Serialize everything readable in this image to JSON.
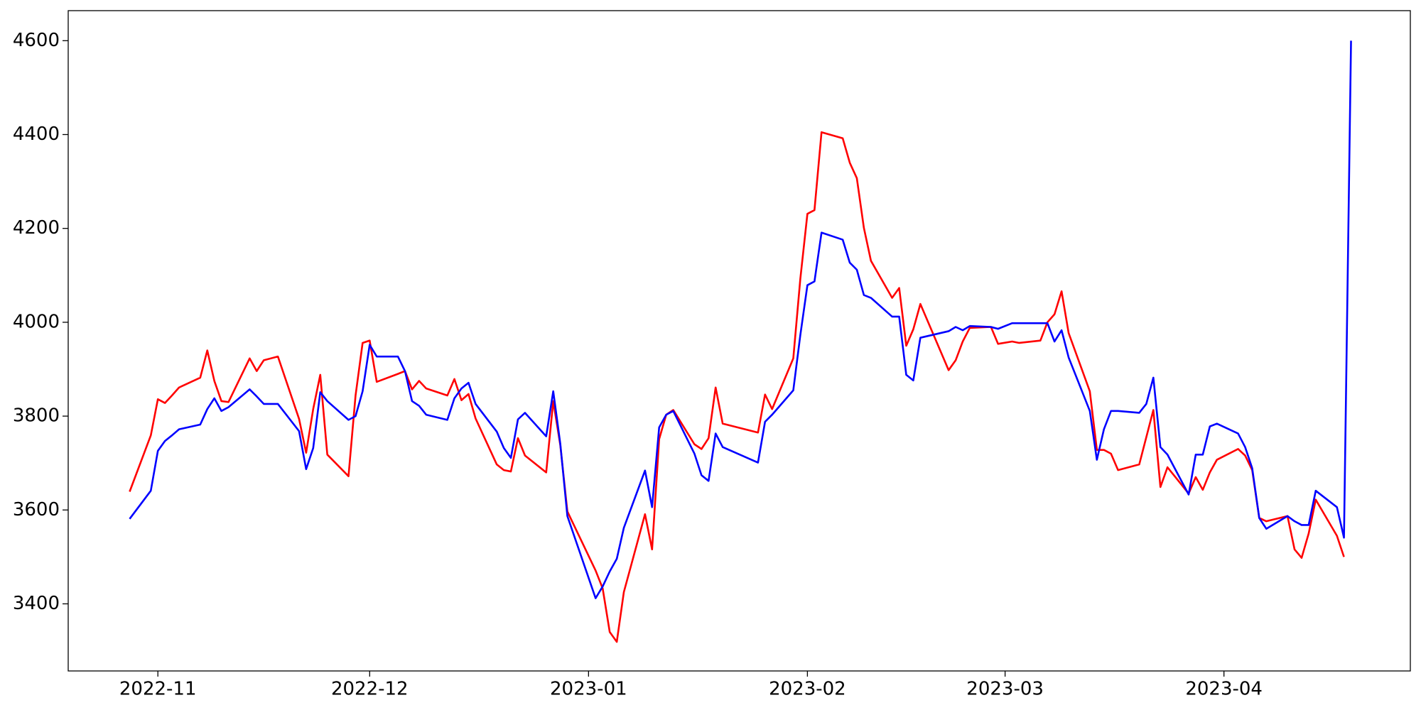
{
  "chart_data": {
    "type": "line",
    "x": [
      -4,
      -1,
      0,
      1,
      2,
      3,
      6,
      7,
      8,
      9,
      10,
      13,
      14,
      15,
      17,
      20,
      21,
      22,
      23,
      24,
      27,
      28,
      29,
      30,
      31,
      34,
      35,
      36,
      37,
      38,
      41,
      42,
      43,
      44,
      45,
      48,
      49,
      50,
      51,
      52,
      55,
      56,
      57,
      58,
      62,
      63,
      64,
      65,
      66,
      69,
      70,
      71,
      72,
      73,
      76,
      77,
      78,
      79,
      80,
      85,
      86,
      87,
      90,
      91,
      92,
      93,
      94,
      97,
      98,
      99,
      100,
      101,
      104,
      105,
      106,
      107,
      108,
      112,
      113,
      114,
      115,
      118,
      119,
      121,
      122,
      125,
      126,
      127,
      128,
      129,
      132,
      133,
      134,
      135,
      136,
      139,
      140,
      141,
      142,
      143,
      146,
      147,
      148,
      149,
      150,
      153,
      154,
      155,
      156,
      157,
      160,
      161,
      162,
      163,
      164,
      167,
      168,
      169
    ],
    "series": [
      {
        "color": "#ff0000",
        "values": [
          3639,
          3759,
          3836,
          3828,
          3844,
          3861,
          3882,
          3940,
          3875,
          3832,
          3830,
          3923,
          3896,
          3919,
          3927,
          3794,
          3722,
          3815,
          3888,
          3718,
          3672,
          3844,
          3956,
          3961,
          3873,
          3890,
          3896,
          3857,
          3875,
          3859,
          3844,
          3879,
          3834,
          3847,
          3795,
          3697,
          3685,
          3682,
          3753,
          3716,
          3680,
          3832,
          3738,
          3597,
          3471,
          3433,
          3340,
          3319,
          3425,
          3591,
          3516,
          3751,
          3803,
          3813,
          3740,
          3730,
          3753,
          3861,
          3784,
          3765,
          3846,
          3815,
          3923,
          4093,
          4231,
          4239,
          4405,
          4392,
          4340,
          4307,
          4201,
          4131,
          4052,
          4073,
          3950,
          3985,
          4039,
          3898,
          3919,
          3959,
          3988,
          3990,
          3954,
          3959,
          3956,
          3961,
          4000,
          4017,
          4066,
          3977,
          3853,
          3728,
          3728,
          3720,
          3685,
          3697,
          3755,
          3813,
          3649,
          3691,
          3635,
          3670,
          3643,
          3680,
          3707,
          3730,
          3716,
          3685,
          3583,
          3576,
          3587,
          3516,
          3498,
          3550,
          3622,
          3545,
          3500,
          null
        ]
      },
      {
        "color": "#0000ff",
        "values": [
          3581,
          3641,
          3726,
          3747,
          3759,
          3772,
          3782,
          3815,
          3838,
          3811,
          3819,
          3857,
          3842,
          3826,
          3826,
          3768,
          3687,
          3732,
          3851,
          3832,
          3792,
          3800,
          3853,
          3952,
          3927,
          3927,
          3896,
          3832,
          3822,
          3803,
          3792,
          3838,
          3859,
          3871,
          3826,
          3767,
          3732,
          3711,
          3793,
          3807,
          3757,
          3853,
          3741,
          3587,
          3412,
          3437,
          3469,
          3496,
          3562,
          3684,
          3606,
          3776,
          3803,
          3811,
          3720,
          3674,
          3662,
          3763,
          3734,
          3701,
          3788,
          3803,
          3855,
          3973,
          4079,
          4087,
          4191,
          4176,
          4127,
          4112,
          4058,
          4052,
          4012,
          4012,
          3888,
          3876,
          3967,
          3981,
          3990,
          3983,
          3992,
          3990,
          3986,
          3998,
          3998,
          3998,
          3998,
          3959,
          3983,
          3925,
          3811,
          3707,
          3772,
          3811,
          3811,
          3807,
          3826,
          3882,
          3734,
          3718,
          3633,
          3718,
          3718,
          3778,
          3784,
          3763,
          3734,
          3689,
          3583,
          3560,
          3587,
          3576,
          3568,
          3568,
          3641,
          3606,
          3541,
          4600
        ]
      }
    ],
    "xlim": [
      -12.7,
      177.4
    ],
    "ylim": [
      3257,
      4664
    ],
    "xticks": [
      {
        "value": 0,
        "label": "2022-11"
      },
      {
        "value": 30,
        "label": "2022-12"
      },
      {
        "value": 61,
        "label": "2023-01"
      },
      {
        "value": 92,
        "label": "2023-02"
      },
      {
        "value": 120,
        "label": "2023-03"
      },
      {
        "value": 151,
        "label": "2023-04"
      }
    ],
    "yticks": [
      3400,
      3600,
      3800,
      4000,
      4200,
      4400,
      4600
    ],
    "grid": false
  }
}
